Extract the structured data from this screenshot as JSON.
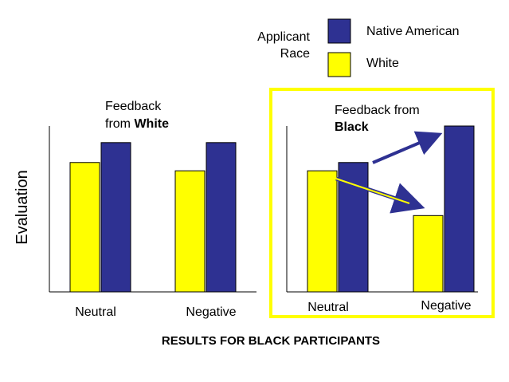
{
  "legend": {
    "title_line1": "Applicant",
    "title_line2": "Race",
    "items": [
      {
        "label": "Native American",
        "color": "#2e3192"
      },
      {
        "label": "White",
        "color": "#ffff00"
      }
    ]
  },
  "y_axis_label": "Evaluation",
  "bottom_title": "RESULTS FOR BLACK PARTICIPANTS",
  "highlight_color": "#ffff00",
  "chart_data": [
    {
      "type": "bar",
      "title_line1": "Feedback",
      "title_line2_prefix": "from ",
      "title_line2_bold": "White",
      "categories": [
        "Neutral",
        "Negative"
      ],
      "series": [
        {
          "name": "White",
          "color": "#ffff00",
          "values": [
            78,
            73
          ]
        },
        {
          "name": "Native American",
          "color": "#2e3192",
          "values": [
            90,
            90
          ]
        }
      ],
      "ylim": [
        0,
        100
      ],
      "highlighted": false
    },
    {
      "type": "bar",
      "title_line1": "Feedback from",
      "title_line2_prefix": "",
      "title_line2_bold": "Black",
      "categories": [
        "Neutral",
        "Negative"
      ],
      "series": [
        {
          "name": "White",
          "color": "#ffff00",
          "values": [
            73,
            46
          ]
        },
        {
          "name": "Native American",
          "color": "#2e3192",
          "values": [
            78,
            100
          ]
        }
      ],
      "ylim": [
        0,
        100
      ],
      "highlighted": true
    }
  ]
}
